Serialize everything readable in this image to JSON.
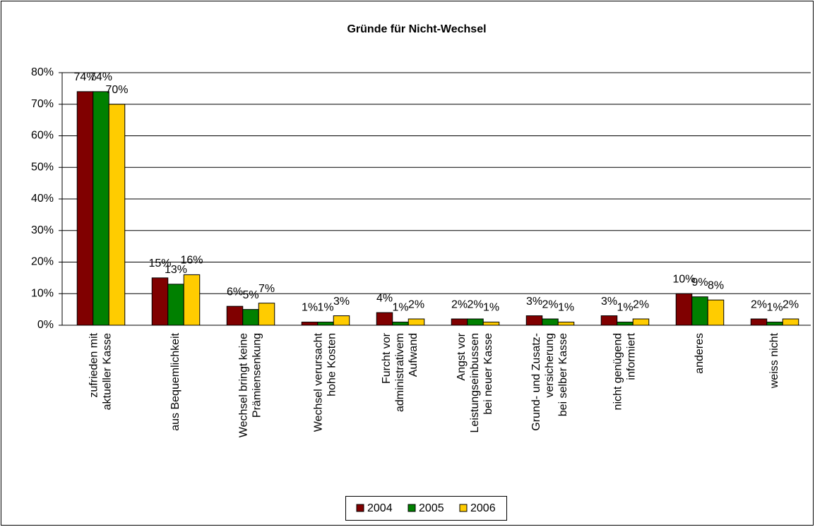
{
  "chart_data": {
    "type": "bar",
    "title": "Gründe für Nicht-Wechsel",
    "categories": [
      [
        "zufrieden mit",
        "aktueller Kasse"
      ],
      [
        "aus Bequemlichkeit"
      ],
      [
        "Wechsel bringt keine",
        "Prämiensenkung"
      ],
      [
        "Wechsel verursacht",
        "hohe Kosten"
      ],
      [
        "Furcht vor",
        "administrativem",
        "Aufwand"
      ],
      [
        "Angst vor",
        "Leistungseinbussen",
        "bei neuer Kasse"
      ],
      [
        "Grund- und Zusatz-",
        "versicherung",
        "bei selber Kasse"
      ],
      [
        "nicht genügend",
        "informiert"
      ],
      [
        "anderes"
      ],
      [
        "weiss nicht"
      ]
    ],
    "series": [
      {
        "name": "2004",
        "color": "#800000",
        "values": [
          74,
          15,
          6,
          1,
          4,
          2,
          3,
          3,
          10,
          2
        ],
        "value_labels": [
          "74%",
          "15%",
          "6%",
          "1%",
          "4%",
          "2%",
          "3%",
          "3%",
          "10%",
          "2%"
        ]
      },
      {
        "name": "2005",
        "color": "#008000",
        "values": [
          74,
          13,
          5,
          1,
          1,
          2,
          2,
          1,
          9,
          1
        ],
        "value_labels": [
          "74%",
          "13%",
          "5%",
          "1%",
          "1%",
          "2%",
          "2%",
          "1%",
          "9%",
          "1%"
        ]
      },
      {
        "name": "2006",
        "color": "#ffcc00",
        "values": [
          70,
          16,
          7,
          3,
          2,
          1,
          1,
          2,
          8,
          2
        ],
        "value_labels": [
          "70%",
          "16%",
          "7%",
          "3%",
          "2%",
          "1%",
          "1%",
          "2%",
          "8%",
          "2%"
        ]
      }
    ],
    "ylim": [
      0,
      80
    ],
    "yticks": [
      {
        "value": 0,
        "label": "0%"
      },
      {
        "value": 10,
        "label": "10%"
      },
      {
        "value": 20,
        "label": "20%"
      },
      {
        "value": 30,
        "label": "30%"
      },
      {
        "value": 40,
        "label": "40%"
      },
      {
        "value": 50,
        "label": "50%"
      },
      {
        "value": 60,
        "label": "60%"
      },
      {
        "value": 70,
        "label": "70%"
      },
      {
        "value": 80,
        "label": "80%"
      }
    ],
    "grid": true,
    "legend": "bottom"
  }
}
